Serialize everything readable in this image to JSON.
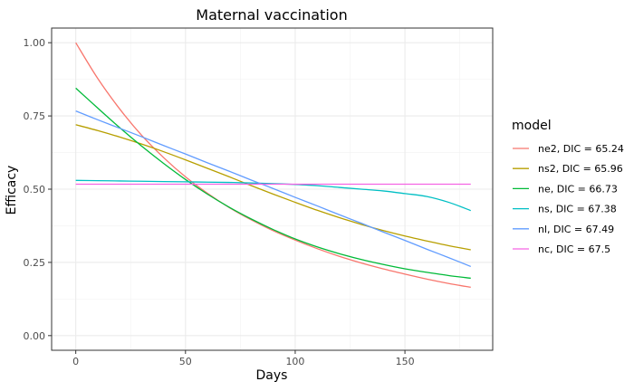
{
  "chart_data": {
    "type": "line",
    "title": "Maternal vaccination",
    "xlabel": "Days",
    "ylabel": "Efficacy",
    "xlim": [
      -11,
      190
    ],
    "ylim": [
      -0.05,
      1.05
    ],
    "x_ticks": [
      0,
      50,
      100,
      150
    ],
    "x_tick_labels": [
      "0",
      "50",
      "100",
      "150"
    ],
    "y_ticks": [
      0,
      0.25,
      0.5,
      0.75,
      1.0
    ],
    "y_tick_labels": [
      "0.00",
      "0.25",
      "0.50",
      "0.75",
      "1.00"
    ],
    "grid": true,
    "legend": {
      "title": "model",
      "placement": "right"
    },
    "x": [
      0,
      10,
      20,
      30,
      40,
      50,
      60,
      70,
      80,
      90,
      100,
      110,
      120,
      130,
      140,
      150,
      160,
      170,
      180
    ],
    "series": [
      {
        "name": "ne2, DIC = 65.24",
        "color": "#F8766D",
        "values": [
          1.0,
          0.878,
          0.774,
          0.684,
          0.608,
          0.542,
          0.486,
          0.437,
          0.395,
          0.358,
          0.326,
          0.297,
          0.271,
          0.248,
          0.228,
          0.21,
          0.193,
          0.178,
          0.165
        ]
      },
      {
        "name": "ns2, DIC = 65.96",
        "color": "#B79F00",
        "values": [
          0.72,
          0.7,
          0.678,
          0.654,
          0.628,
          0.6,
          0.571,
          0.542,
          0.512,
          0.483,
          0.455,
          0.428,
          0.403,
          0.38,
          0.359,
          0.34,
          0.323,
          0.307,
          0.293
        ]
      },
      {
        "name": "ne, DIC = 66.73",
        "color": "#00BA38",
        "values": [
          0.845,
          0.777,
          0.71,
          0.647,
          0.588,
          0.533,
          0.483,
          0.438,
          0.398,
          0.362,
          0.33,
          0.303,
          0.28,
          0.26,
          0.243,
          0.228,
          0.216,
          0.205,
          0.196
        ]
      },
      {
        "name": "ns, DIC = 67.38",
        "color": "#00BFC4",
        "values": [
          0.53,
          0.529,
          0.528,
          0.527,
          0.526,
          0.525,
          0.524,
          0.523,
          0.521,
          0.519,
          0.516,
          0.512,
          0.506,
          0.5,
          0.494,
          0.485,
          0.475,
          0.455,
          0.427
        ]
      },
      {
        "name": "nl, DIC = 67.49",
        "color": "#619CFF",
        "values": [
          0.767,
          0.737,
          0.708,
          0.679,
          0.649,
          0.62,
          0.59,
          0.561,
          0.531,
          0.502,
          0.472,
          0.443,
          0.413,
          0.384,
          0.354,
          0.325,
          0.295,
          0.266,
          0.236
        ]
      },
      {
        "name": "nc, DIC = 67.5",
        "color": "#F564E3",
        "values": [
          0.517,
          0.517,
          0.517,
          0.517,
          0.517,
          0.517,
          0.517,
          0.517,
          0.517,
          0.517,
          0.517,
          0.517,
          0.517,
          0.517,
          0.517,
          0.517,
          0.517,
          0.517,
          0.517
        ]
      }
    ]
  }
}
